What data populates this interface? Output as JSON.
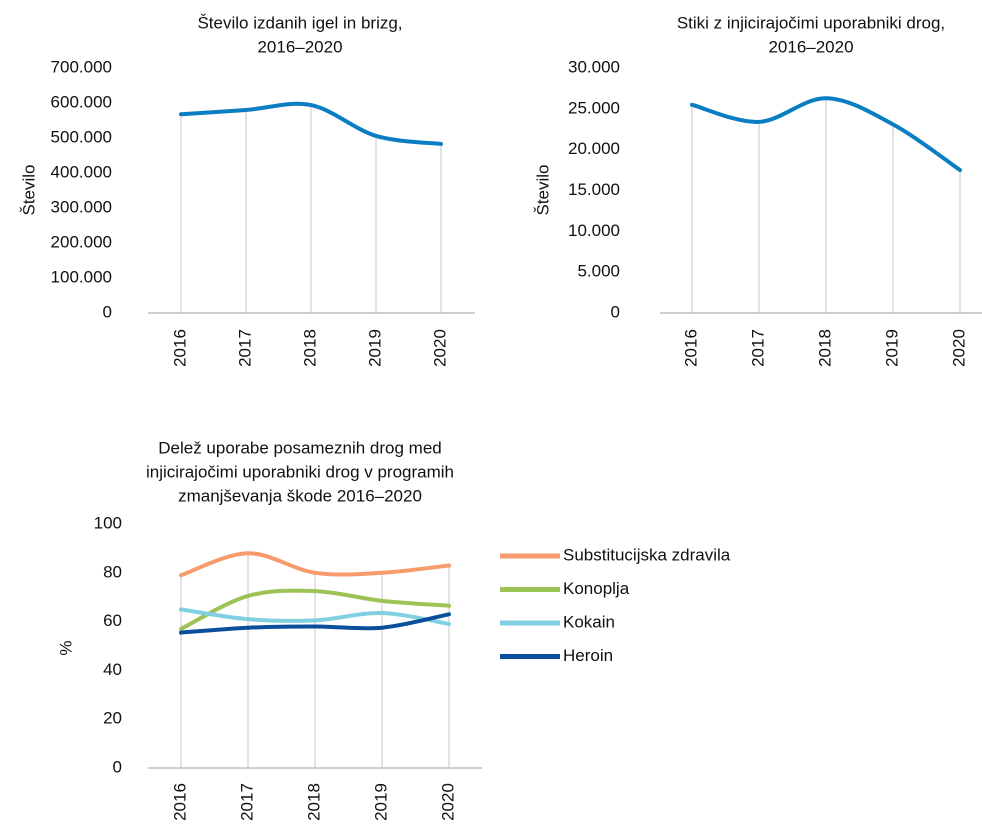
{
  "chart_data": [
    {
      "type": "line",
      "title": [
        "Število izdanih igel in brizg,",
        "2016–2020"
      ],
      "y_label": "Število",
      "categories": [
        "2016",
        "2017",
        "2018",
        "2019",
        "2020"
      ],
      "series": [
        {
          "name": null,
          "color": "#0b7dc3",
          "values": [
            568000,
            580000,
            594000,
            506000,
            483000
          ]
        }
      ],
      "ylim": [
        0,
        700000
      ],
      "yticks": [
        0,
        {
          "value": 100000,
          "label": "100.000"
        },
        {
          "value": 200000,
          "label": "200.000"
        },
        {
          "value": 300000,
          "label": "300.000"
        },
        {
          "value": 400000,
          "label": "400.000"
        },
        {
          "value": 500000,
          "label": "500.000"
        },
        {
          "value": 600000,
          "label": "600.000"
        },
        {
          "value": 700000,
          "label": "700.000"
        }
      ],
      "grid": true
    },
    {
      "type": "line",
      "title": [
        "Stiki z injicirajočimi uporabniki drog,",
        "2016–2020"
      ],
      "y_label": "Število",
      "categories": [
        "2016",
        "2017",
        "2018",
        "2019",
        "2020"
      ],
      "series": [
        {
          "name": null,
          "color": "#0b7dc3",
          "values": [
            25500,
            23400,
            26300,
            23100,
            17500
          ]
        }
      ],
      "ylim": [
        0,
        30000
      ],
      "yticks": [
        0,
        {
          "value": 5000,
          "label": "5.000"
        },
        {
          "value": 10000,
          "label": "10.000"
        },
        {
          "value": 15000,
          "label": "15.000"
        },
        {
          "value": 20000,
          "label": "20.000"
        },
        {
          "value": 25000,
          "label": "25.000"
        },
        {
          "value": 30000,
          "label": "30.000"
        }
      ],
      "grid": true
    },
    {
      "type": "line",
      "title": [
        "Delež uporabe posameznih drog med",
        "injicirajočimi uporabniki drog v programih",
        "zmanjševanja škode 2016–2020"
      ],
      "y_label": "%",
      "categories": [
        "2016",
        "2017",
        "2018",
        "2019",
        "2020"
      ],
      "series": [
        {
          "name": "Substitucijska zdravila",
          "color": "#f79b6c",
          "values": [
            79,
            88,
            80,
            80,
            83
          ]
        },
        {
          "name": "Konoplja",
          "color": "#9dc255",
          "values": [
            57,
            70.5,
            72.5,
            68.5,
            66.5
          ]
        },
        {
          "name": "Kokain",
          "color": "#80d0e2",
          "values": [
            65,
            61,
            60.5,
            63.5,
            59
          ]
        },
        {
          "name": "Heroin",
          "color": "#0b4f9c",
          "values": [
            55.5,
            57.5,
            58,
            57.5,
            63
          ]
        }
      ],
      "ylim": [
        0,
        100
      ],
      "yticks": [
        0,
        20,
        40,
        60,
        80,
        100
      ],
      "grid": true,
      "legend": "right"
    }
  ]
}
